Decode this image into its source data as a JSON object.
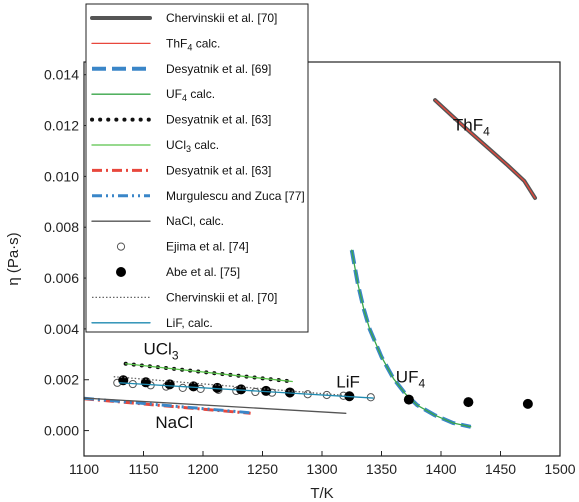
{
  "chart_data": {
    "type": "line",
    "xlabel": "T/K",
    "ylabel": "η (Pa·s)",
    "xlim": [
      1100,
      1500
    ],
    "ylim": [
      -0.001,
      0.0145
    ],
    "xticks": [
      1100,
      1150,
      1200,
      1250,
      1300,
      1350,
      1400,
      1450,
      1500
    ],
    "yticks": [
      "0.000",
      "0.002",
      "0.004",
      "0.006",
      "0.008",
      "0.010",
      "0.012",
      "0.014"
    ],
    "ytick_values": [
      0,
      0.002,
      0.004,
      0.006,
      0.008,
      0.01,
      0.012,
      0.014
    ],
    "legend_position": "top-left",
    "annotations": [
      {
        "main": "ThF",
        "sub": "4",
        "x": 1410,
        "y": 0.0118
      },
      {
        "main": "UCl",
        "sub": "3",
        "x": 1150,
        "y": 0.003
      },
      {
        "main": "LiF",
        "sub": "",
        "x": 1312,
        "y": 0.0017
      },
      {
        "main": "UF",
        "sub": "4",
        "x": 1362,
        "y": 0.0019
      },
      {
        "main": "NaCl",
        "sub": "",
        "x": 1160,
        "y": 0.0001
      }
    ],
    "series": [
      {
        "name": "Chervinskii et al. [70]",
        "legend_main": "Chervinskii et al. [70]",
        "legend_sub": "",
        "legend_tail": "",
        "style": "thick-line",
        "color": "#555555",
        "x": [
          1395,
          1410,
          1425,
          1440,
          1455,
          1470,
          1479
        ],
        "y": [
          0.013,
          0.01235,
          0.01172,
          0.0111,
          0.01048,
          0.00982,
          0.00915
        ]
      },
      {
        "name": "ThF4 calc.",
        "legend_main": "ThF",
        "legend_sub": "4",
        "legend_tail": " calc.",
        "style": "thin-line",
        "color": "#e8473c",
        "x": [
          1395,
          1410,
          1425,
          1440,
          1455,
          1470,
          1479
        ],
        "y": [
          0.013,
          0.01235,
          0.01172,
          0.0111,
          0.01048,
          0.00982,
          0.00915
        ]
      },
      {
        "name": "Desyatnik et al. [69]",
        "legend_main": "Desyatnik et al. [69]",
        "legend_sub": "",
        "legend_tail": "",
        "style": "thick-dash",
        "color": "#3a86c8",
        "x": [
          1325,
          1330,
          1335,
          1340,
          1350,
          1360,
          1370,
          1380,
          1395,
          1410,
          1425
        ],
        "y": [
          0.0071,
          0.0058,
          0.0048,
          0.004,
          0.0029,
          0.00205,
          0.00145,
          0.001,
          0.0006,
          0.0003,
          0.00015
        ]
      },
      {
        "name": "UF4 calc.",
        "legend_main": "UF",
        "legend_sub": "4",
        "legend_tail": " calc.",
        "style": "thin-line",
        "color": "#3aa64a",
        "x": [
          1325,
          1330,
          1335,
          1340,
          1350,
          1360,
          1370,
          1380,
          1395,
          1410,
          1425
        ],
        "y": [
          0.0071,
          0.0058,
          0.0048,
          0.004,
          0.0029,
          0.00205,
          0.00145,
          0.001,
          0.0006,
          0.0003,
          0.00015
        ]
      },
      {
        "name": "Desyatnik et al. [63]",
        "legend_main": "Desyatnik et al. [63]",
        "legend_sub": "",
        "legend_tail": "",
        "style": "dots",
        "color": "#111111",
        "x": [
          1135,
          1275
        ],
        "y": [
          0.00263,
          0.00193
        ]
      },
      {
        "name": "UCl3 calc.",
        "legend_main": "UCl",
        "legend_sub": "3",
        "legend_tail": " calc.",
        "style": "thin-line",
        "color": "#59c24a",
        "x": [
          1135,
          1275
        ],
        "y": [
          0.00263,
          0.00193
        ]
      },
      {
        "name": "Desyatnik et al. [63]",
        "legend_main": "Desyatnik et al. [63]",
        "legend_sub": "",
        "legend_tail": "",
        "style": "dash-dot-red",
        "color": "#e8473c",
        "x": [
          1100,
          1240
        ],
        "y": [
          0.00125,
          0.00068
        ]
      },
      {
        "name": "Murgulescu and Zuca [77]",
        "legend_main": "Murgulescu and Zuca [77]",
        "legend_sub": "",
        "legend_tail": "",
        "style": "dash-dot-blue",
        "color": "#3a86c8",
        "x": [
          1100,
          1240
        ],
        "y": [
          0.00127,
          0.0007
        ]
      },
      {
        "name": "NaCl, calc.",
        "legend_main": "NaCl, calc.",
        "legend_sub": "",
        "legend_tail": "",
        "style": "thin-line",
        "color": "#555555",
        "x": [
          1100,
          1320
        ],
        "y": [
          0.00128,
          0.00068
        ]
      },
      {
        "name": "Ejima et al. [74]",
        "legend_main": "Ejima et al. [74]",
        "legend_sub": "",
        "legend_tail": "",
        "style": "open-circles",
        "color": "#555555",
        "x": [
          1128,
          1141,
          1156,
          1169,
          1183,
          1198,
          1213,
          1228,
          1244,
          1258,
          1273,
          1288,
          1304,
          1318,
          1341
        ],
        "y": [
          0.00188,
          0.00183,
          0.00178,
          0.00173,
          0.00168,
          0.00164,
          0.0016,
          0.00156,
          0.00152,
          0.00149,
          0.00146,
          0.00143,
          0.0014,
          0.00137,
          0.00131
        ]
      },
      {
        "name": "Abe et al. [75]",
        "legend_main": "Abe et al. [75]",
        "legend_sub": "",
        "legend_tail": "",
        "style": "filled-circles",
        "color": "#000000",
        "x": [
          1133,
          1152,
          1172,
          1192,
          1212,
          1232,
          1253,
          1273,
          1323,
          1373,
          1423,
          1473
        ],
        "y": [
          0.00198,
          0.0019,
          0.00182,
          0.00174,
          0.00168,
          0.00162,
          0.00156,
          0.0015,
          0.00135,
          0.00122,
          0.00112,
          0.00105
        ]
      },
      {
        "name": "Chervinskii et al. [70]",
        "legend_main": "Chervinskii et al. [70]",
        "legend_sub": "",
        "legend_tail": "",
        "style": "dotted-gray",
        "color": "#666666",
        "x": [
          1125,
          1320
        ],
        "y": [
          0.00212,
          0.00138
        ]
      },
      {
        "name": "LiF, calc.",
        "legend_main": "LiF, calc.",
        "legend_sub": "",
        "legend_tail": "",
        "style": "thin-line",
        "color": "#1e8ab0",
        "x": [
          1130,
          1343
        ],
        "y": [
          0.00188,
          0.00128
        ]
      }
    ]
  }
}
